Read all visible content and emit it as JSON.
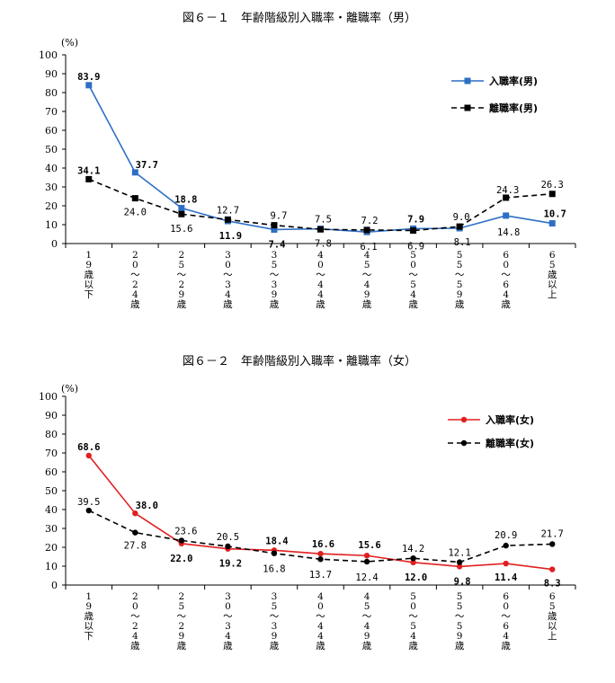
{
  "chart_data": [
    {
      "type": "line",
      "title": "図６－１　年齢階級別入職率・離職率（男）",
      "unit_label": "(%)",
      "ylim": [
        0,
        100
      ],
      "yticks": [
        0,
        10,
        20,
        30,
        40,
        50,
        60,
        70,
        80,
        90,
        100
      ],
      "categories": [
        "19歳以下",
        "20～24歳",
        "25～29歳",
        "30～34歳",
        "35～39歳",
        "40～44歳",
        "45～49歳",
        "50～54歳",
        "55～59歳",
        "60～64歳",
        "65歳以上"
      ],
      "category_lines": [
        [
          "1",
          "9",
          "歳",
          "以",
          "下"
        ],
        [
          "2",
          "0",
          "～",
          "2",
          "4",
          "歳"
        ],
        [
          "2",
          "5",
          "～",
          "2",
          "9",
          "歳"
        ],
        [
          "3",
          "0",
          "～",
          "3",
          "4",
          "歳"
        ],
        [
          "3",
          "5",
          "～",
          "3",
          "9",
          "歳"
        ],
        [
          "4",
          "0",
          "～",
          "4",
          "4",
          "歳"
        ],
        [
          "4",
          "5",
          "～",
          "4",
          "9",
          "歳"
        ],
        [
          "5",
          "0",
          "～",
          "5",
          "4",
          "歳"
        ],
        [
          "5",
          "5",
          "～",
          "5",
          "9",
          "歳"
        ],
        [
          "6",
          "0",
          "～",
          "6",
          "4",
          "歳"
        ],
        [
          "6",
          "5",
          "歳",
          "以",
          "上"
        ]
      ],
      "series": [
        {
          "name": "入職率(男)",
          "color": "#2e6fc4",
          "style": "solid",
          "marker": "square",
          "values": [
            83.9,
            37.7,
            18.8,
            11.9,
            7.4,
            7.8,
            6.1,
            7.9,
            8.1,
            14.8,
            10.7
          ]
        },
        {
          "name": "離職率(男)",
          "color": "#000000",
          "style": "dashed",
          "marker": "square",
          "values": [
            34.1,
            24.0,
            15.6,
            12.7,
            9.7,
            7.5,
            7.2,
            6.9,
            9.0,
            24.3,
            26.3
          ]
        }
      ]
    },
    {
      "type": "line",
      "title": "図６－２　年齢階級別入職率・離職率（女）",
      "unit_label": "(%)",
      "ylim": [
        0,
        100
      ],
      "yticks": [
        0,
        10,
        20,
        30,
        40,
        50,
        60,
        70,
        80,
        90,
        100
      ],
      "categories": [
        "19歳以下",
        "20～24歳",
        "25～29歳",
        "30～34歳",
        "35～39歳",
        "40～44歳",
        "45～49歳",
        "50～54歳",
        "55～59歳",
        "60～64歳",
        "65歳以上"
      ],
      "category_lines": [
        [
          "1",
          "9",
          "歳",
          "以",
          "下"
        ],
        [
          "2",
          "0",
          "～",
          "2",
          "4",
          "歳"
        ],
        [
          "2",
          "5",
          "～",
          "2",
          "9",
          "歳"
        ],
        [
          "3",
          "0",
          "～",
          "3",
          "4",
          "歳"
        ],
        [
          "3",
          "5",
          "～",
          "3",
          "9",
          "歳"
        ],
        [
          "4",
          "0",
          "～",
          "4",
          "4",
          "歳"
        ],
        [
          "4",
          "5",
          "～",
          "4",
          "9",
          "歳"
        ],
        [
          "5",
          "0",
          "～",
          "5",
          "4",
          "歳"
        ],
        [
          "5",
          "5",
          "～",
          "5",
          "9",
          "歳"
        ],
        [
          "6",
          "0",
          "～",
          "6",
          "4",
          "歳"
        ],
        [
          "6",
          "5",
          "歳",
          "以",
          "上"
        ]
      ],
      "series": [
        {
          "name": "入職率(女)",
          "color": "#e02020",
          "style": "solid",
          "marker": "circle",
          "values": [
            68.6,
            38.0,
            22.0,
            19.2,
            18.4,
            16.6,
            15.6,
            12.0,
            9.8,
            11.4,
            8.3
          ]
        },
        {
          "name": "離職率(女)",
          "color": "#000000",
          "style": "dashed",
          "marker": "circle",
          "values": [
            39.5,
            27.8,
            23.6,
            20.5,
            16.8,
            13.7,
            12.4,
            14.2,
            12.1,
            20.9,
            21.7
          ]
        }
      ]
    }
  ]
}
